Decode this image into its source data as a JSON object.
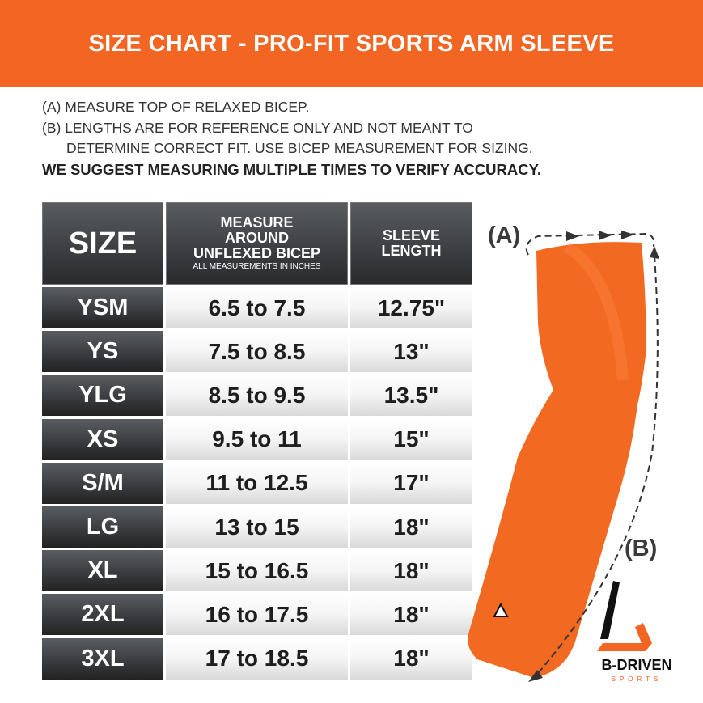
{
  "title": "SIZE CHART - PRO-FIT SPORTS ARM SLEEVE",
  "notes": [
    "(A) MEASURE TOP OF RELAXED BICEP.",
    "(B) LENGTHS ARE FOR REFERENCE ONLY AND NOT MEANT TO",
    "DETERMINE CORRECT FIT. USE BICEP MEASUREMENT FOR SIZING.",
    "WE SUGGEST MEASURING MULTIPLE TIMES TO VERIFY ACCURACY."
  ],
  "table": {
    "headers": {
      "size": "SIZE",
      "measure": [
        "MEASURE",
        "AROUND",
        "UNFLEXED BICEP"
      ],
      "measure_sub": "ALL MEASUREMENTS IN INCHES",
      "length": [
        "SLEEVE",
        "LENGTH"
      ]
    },
    "rows": [
      {
        "size": "YSM",
        "bicep": "6.5 to 7.5",
        "length": "12.75\""
      },
      {
        "size": "YS",
        "bicep": "7.5 to 8.5",
        "length": "13\""
      },
      {
        "size": "YLG",
        "bicep": "8.5 to 9.5",
        "length": "13.5\""
      },
      {
        "size": "XS",
        "bicep": "9.5 to 11",
        "length": "15\""
      },
      {
        "size": "S/M",
        "bicep": "11 to 12.5",
        "length": "17\""
      },
      {
        "size": "LG",
        "bicep": "13 to 15",
        "length": "18\""
      },
      {
        "size": "XL",
        "bicep": "15 to 16.5",
        "length": "18\""
      },
      {
        "size": "2XL",
        "bicep": "16 to 17.5",
        "length": "18\""
      },
      {
        "size": "3XL",
        "bicep": "17 to 18.5",
        "length": "18\""
      }
    ]
  },
  "diagram": {
    "label_a": "(A)",
    "label_b": "(B)"
  },
  "logo": {
    "name": "B-DRIVEN",
    "sub": "SPORTS"
  },
  "colors": {
    "accent": "#f26522",
    "header": "#3b3d40"
  }
}
